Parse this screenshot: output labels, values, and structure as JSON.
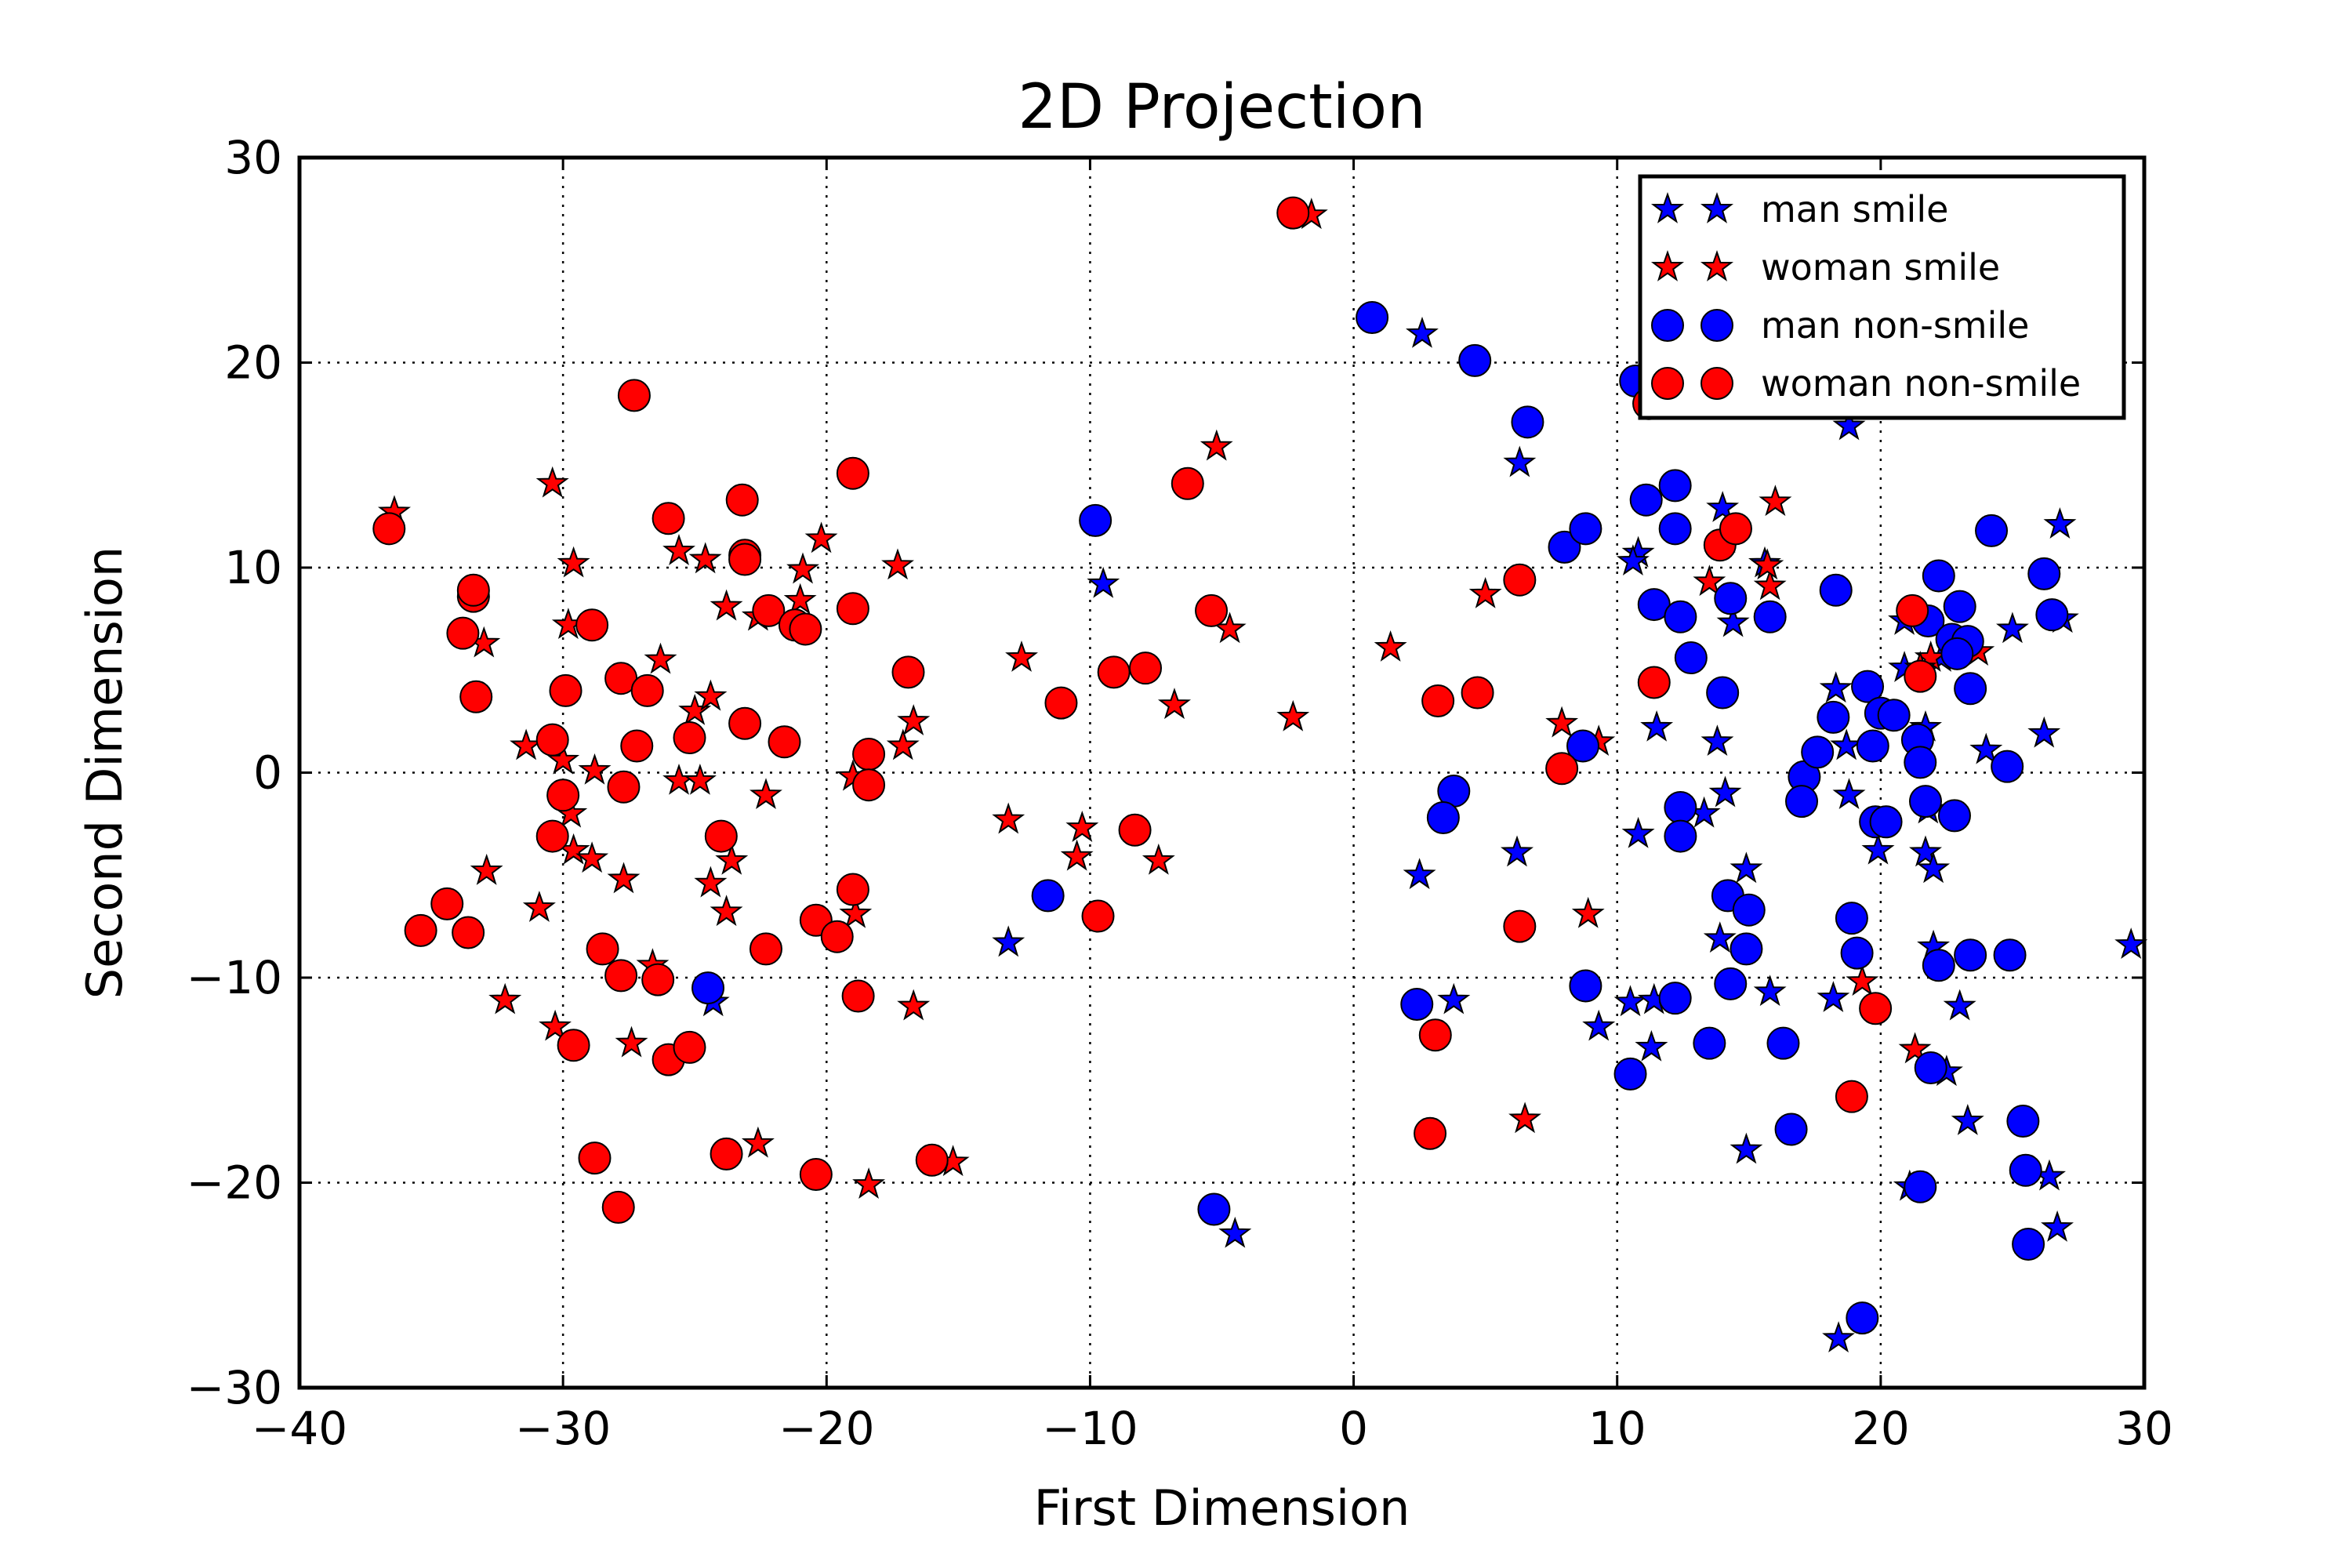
{
  "chart_data": {
    "type": "scatter",
    "title": "2D Projection",
    "xlabel": "First Dimension",
    "ylabel": "Second Dimension",
    "xlim": [
      -40,
      30
    ],
    "ylim": [
      -30,
      30
    ],
    "xticks": [
      -40,
      -30,
      -20,
      -10,
      0,
      10,
      20,
      30
    ],
    "yticks": [
      -30,
      -20,
      -10,
      0,
      10,
      20,
      30
    ],
    "xtick_labels": [
      "−40",
      "−30",
      "−20",
      "−10",
      "0",
      "10",
      "20",
      "30"
    ],
    "ytick_labels": [
      "−30",
      "−20",
      "−10",
      "0",
      "10",
      "20",
      "30"
    ],
    "grid": true,
    "legend_position": "top-right",
    "series": [
      {
        "name": "man smile",
        "marker": "star",
        "color": "#0000ff",
        "points": [
          [
            2.6,
            21.4
          ],
          [
            6.3,
            15.1
          ],
          [
            18.8,
            16.9
          ],
          [
            10.8,
            10.7
          ],
          [
            10.6,
            10.3
          ],
          [
            14.0,
            12.9
          ],
          [
            15.6,
            10.2
          ],
          [
            14.4,
            7.3
          ],
          [
            11.5,
            2.2
          ],
          [
            13.8,
            1.5
          ],
          [
            14.1,
            -1.0
          ],
          [
            13.3,
            -2.0
          ],
          [
            10.8,
            -3.0
          ],
          [
            6.2,
            -3.9
          ],
          [
            2.5,
            -5.0
          ],
          [
            14.9,
            -4.7
          ],
          [
            13.9,
            -8.1
          ],
          [
            3.8,
            -11.1
          ],
          [
            9.3,
            -12.4
          ],
          [
            10.5,
            -11.2
          ],
          [
            11.4,
            -11.1
          ],
          [
            11.3,
            -13.4
          ],
          [
            15.8,
            -10.7
          ],
          [
            18.2,
            -11.0
          ],
          [
            14.9,
            -18.4
          ],
          [
            18.4,
            -27.6
          ],
          [
            18.8,
            -1.1
          ],
          [
            21.7,
            -3.9
          ],
          [
            22.0,
            -4.7
          ],
          [
            19.9,
            -3.8
          ],
          [
            21.8,
            -1.8
          ],
          [
            23.0,
            -11.4
          ],
          [
            22.5,
            -14.6
          ],
          [
            23.3,
            -17.0
          ],
          [
            26.4,
            -19.7
          ],
          [
            26.7,
            -22.2
          ],
          [
            21.1,
            -20.2
          ],
          [
            25.0,
            7.0
          ],
          [
            26.8,
            12.1
          ],
          [
            26.9,
            7.5
          ],
          [
            24.0,
            1.1
          ],
          [
            26.2,
            1.9
          ],
          [
            29.5,
            -8.4
          ],
          [
            22.0,
            -8.5
          ],
          [
            18.3,
            4.1
          ],
          [
            22.3,
            5.6
          ],
          [
            20.9,
            7.4
          ],
          [
            21.7,
            2.2
          ],
          [
            20.9,
            5.1
          ],
          [
            18.7,
            1.3
          ],
          [
            -9.5,
            9.2
          ],
          [
            -13.1,
            -8.3
          ],
          [
            -24.3,
            -11.2
          ],
          [
            -4.5,
            -22.5
          ]
        ]
      },
      {
        "name": "woman smile",
        "marker": "star",
        "color": "#ff0000",
        "points": [
          [
            -36.4,
            12.7
          ],
          [
            -30.4,
            14.1
          ],
          [
            -29.6,
            10.2
          ],
          [
            -29.8,
            7.2
          ],
          [
            -33.0,
            6.3
          ],
          [
            -31.4,
            1.3
          ],
          [
            -30.0,
            0.6
          ],
          [
            -28.8,
            0.1
          ],
          [
            -29.7,
            -2.0
          ],
          [
            -29.6,
            -3.8
          ],
          [
            -28.9,
            -4.2
          ],
          [
            -27.7,
            -5.2
          ],
          [
            -32.9,
            -4.8
          ],
          [
            -30.9,
            -6.6
          ],
          [
            -32.2,
            -11.1
          ],
          [
            -30.3,
            -12.4
          ],
          [
            -27.4,
            -13.2
          ],
          [
            -26.6,
            -9.4
          ],
          [
            -26.3,
            5.5
          ],
          [
            -25.0,
            3.0
          ],
          [
            -24.4,
            3.7
          ],
          [
            -25.6,
            10.8
          ],
          [
            -24.6,
            10.4
          ],
          [
            -23.8,
            8.1
          ],
          [
            -22.6,
            7.6
          ],
          [
            -21.0,
            8.4
          ],
          [
            -20.9,
            9.9
          ],
          [
            -20.2,
            11.4
          ],
          [
            -25.6,
            -0.4
          ],
          [
            -24.8,
            -0.4
          ],
          [
            -22.3,
            -1.1
          ],
          [
            -23.6,
            -4.3
          ],
          [
            -24.4,
            -5.4
          ],
          [
            -23.8,
            -6.8
          ],
          [
            -19.0,
            -0.2
          ],
          [
            -18.9,
            -6.9
          ],
          [
            -16.7,
            2.5
          ],
          [
            -17.1,
            1.3
          ],
          [
            -17.3,
            10.1
          ],
          [
            -16.7,
            -11.4
          ],
          [
            -22.6,
            -18.1
          ],
          [
            -18.4,
            -20.1
          ],
          [
            -15.2,
            -19.0
          ],
          [
            -13.1,
            -2.3
          ],
          [
            -12.6,
            5.6
          ],
          [
            -10.3,
            -2.7
          ],
          [
            -10.5,
            -4.1
          ],
          [
            -7.4,
            -4.3
          ],
          [
            -6.8,
            3.3
          ],
          [
            -5.2,
            15.9
          ],
          [
            -4.7,
            7.0
          ],
          [
            -2.3,
            2.7
          ],
          [
            -1.6,
            27.2
          ],
          [
            1.4,
            6.1
          ],
          [
            5.0,
            8.7
          ],
          [
            6.5,
            -16.9
          ],
          [
            7.9,
            2.4
          ],
          [
            8.9,
            -6.9
          ],
          [
            9.3,
            1.5
          ],
          [
            13.5,
            9.3
          ],
          [
            15.8,
            9.1
          ],
          [
            15.7,
            10.1
          ],
          [
            16.0,
            13.2
          ],
          [
            14.1,
            11.4
          ],
          [
            19.3,
            -10.2
          ],
          [
            21.3,
            -13.5
          ],
          [
            21.9,
            5.6
          ],
          [
            23.7,
            5.9
          ],
          [
            21.5,
            5.1
          ]
        ]
      },
      {
        "name": "man non-smile",
        "marker": "circle",
        "color": "#0000ff",
        "points": [
          [
            0.7,
            22.2
          ],
          [
            4.6,
            20.1
          ],
          [
            6.6,
            17.1
          ],
          [
            10.7,
            19.1
          ],
          [
            8.0,
            11.0
          ],
          [
            8.8,
            11.9
          ],
          [
            11.1,
            13.3
          ],
          [
            12.2,
            14.0
          ],
          [
            12.2,
            11.9
          ],
          [
            11.4,
            8.2
          ],
          [
            12.4,
            7.6
          ],
          [
            14.3,
            8.5
          ],
          [
            15.8,
            7.6
          ],
          [
            18.3,
            8.9
          ],
          [
            12.8,
            5.6
          ],
          [
            14.0,
            3.9
          ],
          [
            8.7,
            1.3
          ],
          [
            3.8,
            -0.9
          ],
          [
            3.4,
            -2.2
          ],
          [
            12.4,
            -1.7
          ],
          [
            12.4,
            -3.1
          ],
          [
            14.2,
            -6.0
          ],
          [
            15.0,
            -6.7
          ],
          [
            14.9,
            -8.6
          ],
          [
            14.3,
            -10.3
          ],
          [
            8.8,
            -10.4
          ],
          [
            12.2,
            -11.0
          ],
          [
            13.5,
            -13.2
          ],
          [
            16.3,
            -13.2
          ],
          [
            10.5,
            -14.7
          ],
          [
            16.6,
            -17.4
          ],
          [
            17.1,
            -0.2
          ],
          [
            17.0,
            -1.4
          ],
          [
            17.6,
            1.0
          ],
          [
            18.9,
            -7.1
          ],
          [
            19.1,
            -8.8
          ],
          [
            19.3,
            -26.6
          ],
          [
            18.2,
            2.7
          ],
          [
            19.5,
            4.2
          ],
          [
            19.7,
            1.3
          ],
          [
            20.0,
            2.9
          ],
          [
            20.5,
            2.8
          ],
          [
            21.4,
            1.6
          ],
          [
            21.5,
            0.5
          ],
          [
            19.8,
            -2.4
          ],
          [
            20.2,
            -2.4
          ],
          [
            21.7,
            -1.4
          ],
          [
            22.8,
            -2.1
          ],
          [
            22.2,
            -9.4
          ],
          [
            23.4,
            -8.9
          ],
          [
            24.9,
            -8.9
          ],
          [
            21.5,
            -20.2
          ],
          [
            21.9,
            -14.4
          ],
          [
            25.4,
            -17.0
          ],
          [
            25.5,
            -19.4
          ],
          [
            25.6,
            -23.0
          ],
          [
            22.2,
            9.6
          ],
          [
            24.2,
            11.8
          ],
          [
            26.2,
            9.7
          ],
          [
            26.5,
            7.7
          ],
          [
            21.8,
            7.4
          ],
          [
            22.7,
            6.5
          ],
          [
            23.0,
            8.1
          ],
          [
            23.3,
            6.4
          ],
          [
            22.9,
            5.8
          ],
          [
            23.4,
            4.1
          ],
          [
            24.8,
            0.3
          ],
          [
            -9.8,
            12.3
          ],
          [
            -11.6,
            -6.0
          ],
          [
            -24.5,
            -10.5
          ],
          [
            -5.3,
            -21.3
          ],
          [
            2.4,
            -11.3
          ]
        ]
      },
      {
        "name": "woman non-smile",
        "marker": "circle",
        "color": "#ff0000",
        "points": [
          [
            -36.6,
            11.9
          ],
          [
            -27.3,
            18.4
          ],
          [
            -26.0,
            12.4
          ],
          [
            -23.2,
            13.3
          ],
          [
            -19.0,
            14.6
          ],
          [
            -33.4,
            8.6
          ],
          [
            -33.4,
            8.9
          ],
          [
            -33.8,
            6.8
          ],
          [
            -33.3,
            3.7
          ],
          [
            -29.9,
            4.0
          ],
          [
            -28.9,
            7.2
          ],
          [
            -27.8,
            4.6
          ],
          [
            -26.8,
            4.0
          ],
          [
            -27.2,
            1.3
          ],
          [
            -27.7,
            -0.7
          ],
          [
            -25.2,
            1.7
          ],
          [
            -23.1,
            10.6
          ],
          [
            -23.1,
            10.4
          ],
          [
            -22.2,
            7.9
          ],
          [
            -21.2,
            7.2
          ],
          [
            -20.8,
            7.0
          ],
          [
            -19.0,
            8.0
          ],
          [
            -23.1,
            2.4
          ],
          [
            -21.6,
            1.5
          ],
          [
            -18.4,
            0.9
          ],
          [
            -18.4,
            -0.6
          ],
          [
            -16.9,
            4.9
          ],
          [
            -30.4,
            1.6
          ],
          [
            -30.0,
            -1.1
          ],
          [
            -30.4,
            -3.1
          ],
          [
            -24.0,
            -3.1
          ],
          [
            -35.4,
            -7.7
          ],
          [
            -34.4,
            -6.4
          ],
          [
            -33.6,
            -7.8
          ],
          [
            -28.5,
            -8.6
          ],
          [
            -27.8,
            -9.9
          ],
          [
            -26.4,
            -10.1
          ],
          [
            -29.6,
            -13.3
          ],
          [
            -26.0,
            -14.0
          ],
          [
            -25.2,
            -13.4
          ],
          [
            -22.3,
            -8.6
          ],
          [
            -20.4,
            -7.2
          ],
          [
            -19.6,
            -8.0
          ],
          [
            -19.0,
            -5.7
          ],
          [
            -18.8,
            -10.9
          ],
          [
            -28.8,
            -18.8
          ],
          [
            -27.9,
            -21.2
          ],
          [
            -23.8,
            -18.6
          ],
          [
            -20.4,
            -19.6
          ],
          [
            -16.0,
            -18.9
          ],
          [
            -11.1,
            3.4
          ],
          [
            -9.1,
            4.9
          ],
          [
            -7.9,
            5.1
          ],
          [
            -8.3,
            -2.8
          ],
          [
            -9.7,
            -7.0
          ],
          [
            -6.3,
            14.1
          ],
          [
            -5.4,
            7.9
          ],
          [
            -2.3,
            27.3
          ],
          [
            3.2,
            3.5
          ],
          [
            4.7,
            3.9
          ],
          [
            6.3,
            9.4
          ],
          [
            7.9,
            0.2
          ],
          [
            6.3,
            -7.5
          ],
          [
            3.1,
            -12.8
          ],
          [
            2.9,
            -17.6
          ],
          [
            11.2,
            18.0
          ],
          [
            11.4,
            4.4
          ],
          [
            13.9,
            11.1
          ],
          [
            14.5,
            11.9
          ],
          [
            19.8,
            -11.5
          ],
          [
            18.9,
            -15.8
          ],
          [
            21.2,
            7.9
          ],
          [
            21.5,
            4.7
          ]
        ]
      }
    ]
  }
}
